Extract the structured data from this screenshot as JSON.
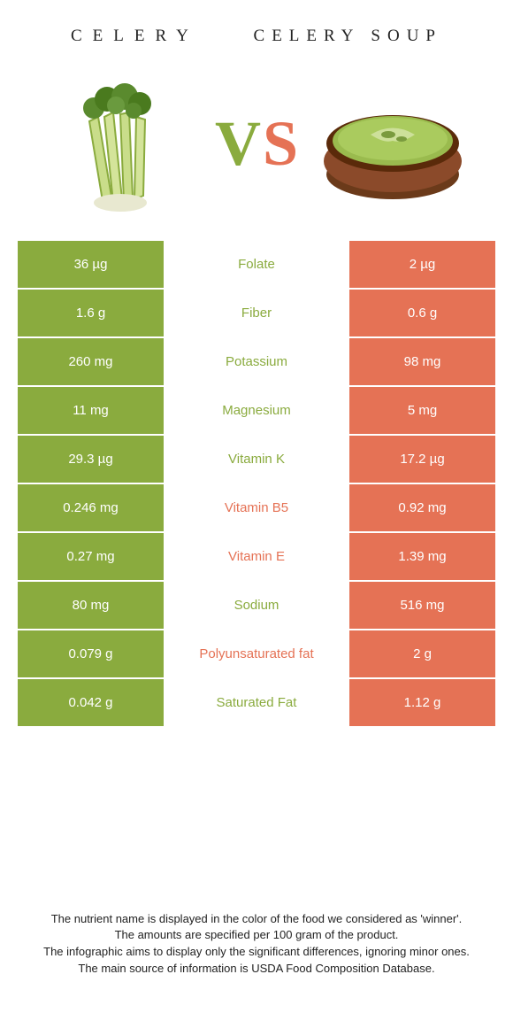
{
  "colors": {
    "left": "#8aab3e",
    "right": "#e57255",
    "bg": "#ffffff"
  },
  "header": {
    "left_title": "CELERY",
    "right_title": "CELERY SOUP"
  },
  "vs": {
    "v": "V",
    "s": "S"
  },
  "rows": [
    {
      "left": "36 µg",
      "label": "Folate",
      "right": "2 µg",
      "winner": "left"
    },
    {
      "left": "1.6 g",
      "label": "Fiber",
      "right": "0.6 g",
      "winner": "left"
    },
    {
      "left": "260 mg",
      "label": "Potassium",
      "right": "98 mg",
      "winner": "left"
    },
    {
      "left": "11 mg",
      "label": "Magnesium",
      "right": "5 mg",
      "winner": "left"
    },
    {
      "left": "29.3 µg",
      "label": "Vitamin K",
      "right": "17.2 µg",
      "winner": "left"
    },
    {
      "left": "0.246 mg",
      "label": "Vitamin B5",
      "right": "0.92 mg",
      "winner": "right"
    },
    {
      "left": "0.27 mg",
      "label": "Vitamin E",
      "right": "1.39 mg",
      "winner": "right"
    },
    {
      "left": "80 mg",
      "label": "Sodium",
      "right": "516 mg",
      "winner": "left"
    },
    {
      "left": "0.079 g",
      "label": "Polyunsaturated fat",
      "right": "2 g",
      "winner": "right"
    },
    {
      "left": "0.042 g",
      "label": "Saturated Fat",
      "right": "1.12 g",
      "winner": "left"
    }
  ],
  "footer": {
    "line1": "The nutrient name is displayed in the color of the food we considered as 'winner'.",
    "line2": "The amounts are specified per 100 gram of the product.",
    "line3": "The infographic aims to display only the significant differences, ignoring minor ones.",
    "line4": "The main source of information is USDA Food Composition Database."
  }
}
